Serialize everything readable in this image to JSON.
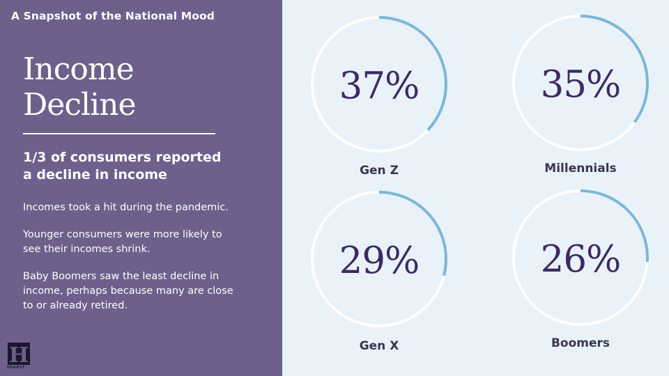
{
  "header": {
    "kicker": "A Snapshot of the National Mood"
  },
  "left_panel": {
    "title_line_1": "Income",
    "title_line_2": "Decline",
    "subhead_line_1": "1/3 of consumers reported",
    "subhead_line_2": "a decline in income",
    "paragraphs": [
      [
        "Incomes took a hit during the pandemic."
      ],
      [
        "Younger consumers were more likely to",
        "see their incomes shrink."
      ],
      [
        "Baby Boomers saw the least decline in",
        "income, perhaps because many are close",
        "to or already retired."
      ]
    ],
    "logo_letter": "H",
    "logo_word": "HEARST"
  },
  "colors": {
    "panel_bg": "#6e5f8b",
    "page_bg": "#e9f2f8",
    "ring_track": "#ffffff",
    "ring_fill": "#7cb7d6",
    "value_text": "#3d2a64",
    "label_text": "#3a3550"
  },
  "chart_data": {
    "type": "donut",
    "title": "Income Decline",
    "unit": "%",
    "categories": [
      "Gen Z",
      "Millennials",
      "Gen X",
      "Boomers"
    ],
    "values": [
      37,
      35,
      29,
      26
    ],
    "value_labels": [
      "37%",
      "35%",
      "29%",
      "26%"
    ]
  }
}
